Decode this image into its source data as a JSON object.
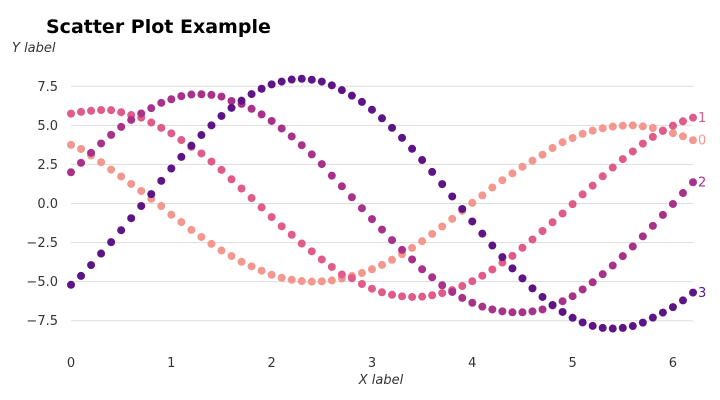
{
  "chart_data": {
    "type": "scatter",
    "title": "Scatter Plot Example",
    "xlabel": "X label",
    "ylabel": "Y label",
    "xlim": [
      0,
      6.2
    ],
    "ylim": [
      -9.5,
      9.5
    ],
    "x_ticks": [
      0,
      1,
      2,
      3,
      4,
      5,
      6
    ],
    "y_ticks": [
      -7.5,
      -5.0,
      -2.5,
      0.0,
      2.5,
      5.0,
      7.5
    ],
    "y_tick_labels": [
      "−7.5",
      "−5.0",
      "−2.5",
      "0.0",
      "2.5",
      "5.0",
      "7.5"
    ],
    "grid": "horizontal",
    "x": [
      0.0,
      0.1,
      0.2,
      0.3,
      0.4,
      0.5,
      0.6,
      0.7,
      0.8,
      0.9,
      1.0,
      1.1,
      1.2,
      1.3,
      1.4,
      1.5,
      1.6,
      1.7,
      1.8,
      1.9,
      2.0,
      2.1,
      2.2,
      2.3,
      2.4,
      2.5,
      2.6,
      2.7,
      2.8,
      2.9,
      3.0,
      3.1,
      3.2,
      3.3,
      3.4,
      3.5,
      3.6,
      3.7,
      3.8,
      3.9,
      4.0,
      4.1,
      4.2,
      4.3,
      4.4,
      4.5,
      4.6,
      4.7,
      4.8,
      4.9,
      5.0,
      5.1,
      5.2,
      5.3,
      5.4,
      5.5,
      5.6,
      5.7,
      5.8,
      5.9,
      6.0,
      6.1,
      6.2
    ],
    "series": [
      {
        "name": "0",
        "color": "#f4978e",
        "values": [
          3.75,
          3.49,
          3.07,
          2.64,
          2.17,
          1.73,
          1.25,
          0.8,
          0.3,
          -0.16,
          -0.72,
          -1.19,
          -1.69,
          -2.14,
          -2.58,
          -3.01,
          -3.36,
          -3.73,
          -4.02,
          -4.3,
          -4.56,
          -4.75,
          -4.88,
          -4.96,
          -5.0,
          -4.98,
          -4.92,
          -4.8,
          -4.64,
          -4.45,
          -4.21,
          -3.93,
          -3.6,
          -3.24,
          -2.84,
          -2.41,
          -1.95,
          -1.47,
          -0.98,
          -0.47,
          0.04,
          0.52,
          1.02,
          1.49,
          1.93,
          2.35,
          2.74,
          3.12,
          3.55,
          3.92,
          4.19,
          4.46,
          4.66,
          4.81,
          4.92,
          4.98,
          5.0,
          4.93,
          4.83,
          4.68,
          4.5,
          4.3,
          4.05
        ]
      },
      {
        "name": "1",
        "color": "#e05a8a",
        "values": [
          5.75,
          5.86,
          5.93,
          5.98,
          5.97,
          5.84,
          5.66,
          5.49,
          5.18,
          4.84,
          4.49,
          4.06,
          3.63,
          3.2,
          2.68,
          2.15,
          1.55,
          0.96,
          0.35,
          -0.25,
          -0.87,
          -1.46,
          -2.0,
          -2.56,
          -3.06,
          -3.58,
          -4.06,
          -4.54,
          -4.78,
          -5.15,
          -5.45,
          -5.68,
          -5.84,
          -5.94,
          -5.98,
          -5.96,
          -5.87,
          -5.73,
          -5.54,
          -5.28,
          -4.97,
          -4.62,
          -4.22,
          -3.78,
          -3.35,
          -2.83,
          -2.3,
          -1.76,
          -1.2,
          -0.64,
          -0.04,
          0.58,
          1.14,
          1.74,
          2.3,
          2.84,
          3.33,
          3.83,
          4.26,
          4.64,
          4.98,
          5.26,
          5.49
        ]
      },
      {
        "name": "2",
        "color": "#a8318a",
        "values": [
          2.0,
          2.6,
          3.24,
          3.84,
          4.39,
          4.9,
          5.35,
          5.76,
          6.1,
          6.44,
          6.67,
          6.87,
          6.97,
          6.99,
          6.95,
          6.84,
          6.56,
          6.37,
          6.06,
          5.7,
          5.28,
          4.8,
          4.29,
          3.73,
          3.14,
          2.52,
          1.78,
          1.1,
          0.4,
          -0.3,
          -1.0,
          -1.67,
          -2.34,
          -2.97,
          -3.58,
          -4.21,
          -4.72,
          -5.23,
          -5.66,
          -6.04,
          -6.35,
          -6.6,
          -6.78,
          -6.9,
          -6.96,
          -6.96,
          -6.9,
          -6.78,
          -6.52,
          -6.25,
          -5.93,
          -5.5,
          -5.04,
          -4.52,
          -3.97,
          -3.37,
          -2.75,
          -2.1,
          -1.43,
          -0.73,
          -0.03,
          0.67,
          1.36
        ]
      },
      {
        "name": "3",
        "color": "#5c1487",
        "values": [
          -5.2,
          -4.63,
          -3.94,
          -3.2,
          -2.47,
          -1.71,
          -0.94,
          -0.16,
          0.6,
          1.45,
          2.24,
          2.98,
          3.7,
          4.38,
          5.0,
          5.6,
          6.12,
          6.58,
          7.0,
          7.34,
          7.62,
          7.8,
          7.93,
          7.98,
          7.92,
          7.8,
          7.56,
          7.25,
          6.9,
          6.5,
          6.0,
          5.45,
          4.84,
          4.2,
          3.5,
          2.78,
          2.02,
          1.24,
          0.45,
          -0.35,
          -1.15,
          -1.93,
          -2.69,
          -3.43,
          -4.15,
          -4.79,
          -5.43,
          -5.98,
          -6.49,
          -6.94,
          -7.31,
          -7.61,
          -7.83,
          -7.96,
          -8.0,
          -7.96,
          -7.84,
          -7.62,
          -7.3,
          -6.98,
          -6.63,
          -6.2,
          -5.7
        ]
      }
    ]
  }
}
